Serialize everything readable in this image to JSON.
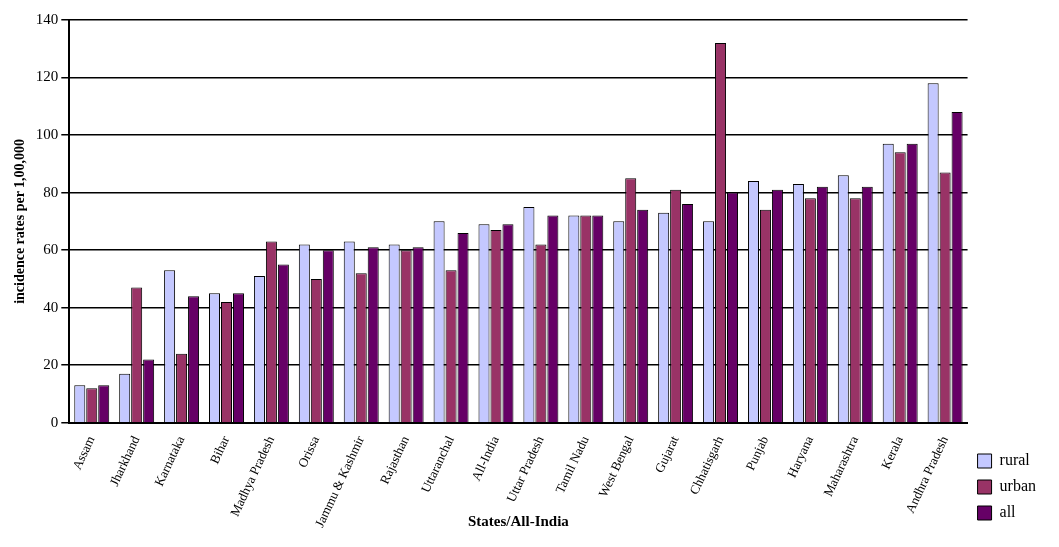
{
  "chart_data": {
    "type": "bar",
    "xlabel": "States/All-India",
    "ylabel": "incidence rates per 1,00,000",
    "categories": [
      "Assam",
      "Jharkhand",
      "Karnataka",
      "Bihar",
      "Madhya Pradesh",
      "Orissa",
      "Jammu & Kashmir",
      "Rajasthan",
      "Uttaranchal",
      "All-India",
      "Uttar Pradesh",
      "Tamil Nadu",
      "West Bengal",
      "Gujarat",
      "Chhatisgarh",
      "Punjab",
      "Haryana",
      "Maharashtra",
      "Kerala",
      "Andhra Pradesh"
    ],
    "series": [
      {
        "name": "rural",
        "color": "#c4c8ff",
        "values": [
          13,
          17,
          53,
          45,
          51,
          62,
          63,
          62,
          70,
          69,
          75,
          72,
          70,
          73,
          70,
          84,
          83,
          86,
          97,
          118
        ]
      },
      {
        "name": "urban",
        "color": "#993366",
        "values": [
          12,
          47,
          24,
          42,
          63,
          50,
          52,
          60,
          53,
          67,
          62,
          72,
          85,
          81,
          132,
          74,
          78,
          78,
          94,
          87
        ]
      },
      {
        "name": "all",
        "color": "#660066",
        "values": [
          13,
          22,
          44,
          45,
          55,
          60,
          61,
          61,
          66,
          69,
          72,
          72,
          74,
          76,
          80,
          81,
          82,
          82,
          97,
          108
        ]
      }
    ],
    "ylim": [
      0,
      140
    ],
    "yticks": [
      0,
      20,
      40,
      60,
      80,
      100,
      120,
      140
    ],
    "grid": "y",
    "legend": "bottom right"
  }
}
